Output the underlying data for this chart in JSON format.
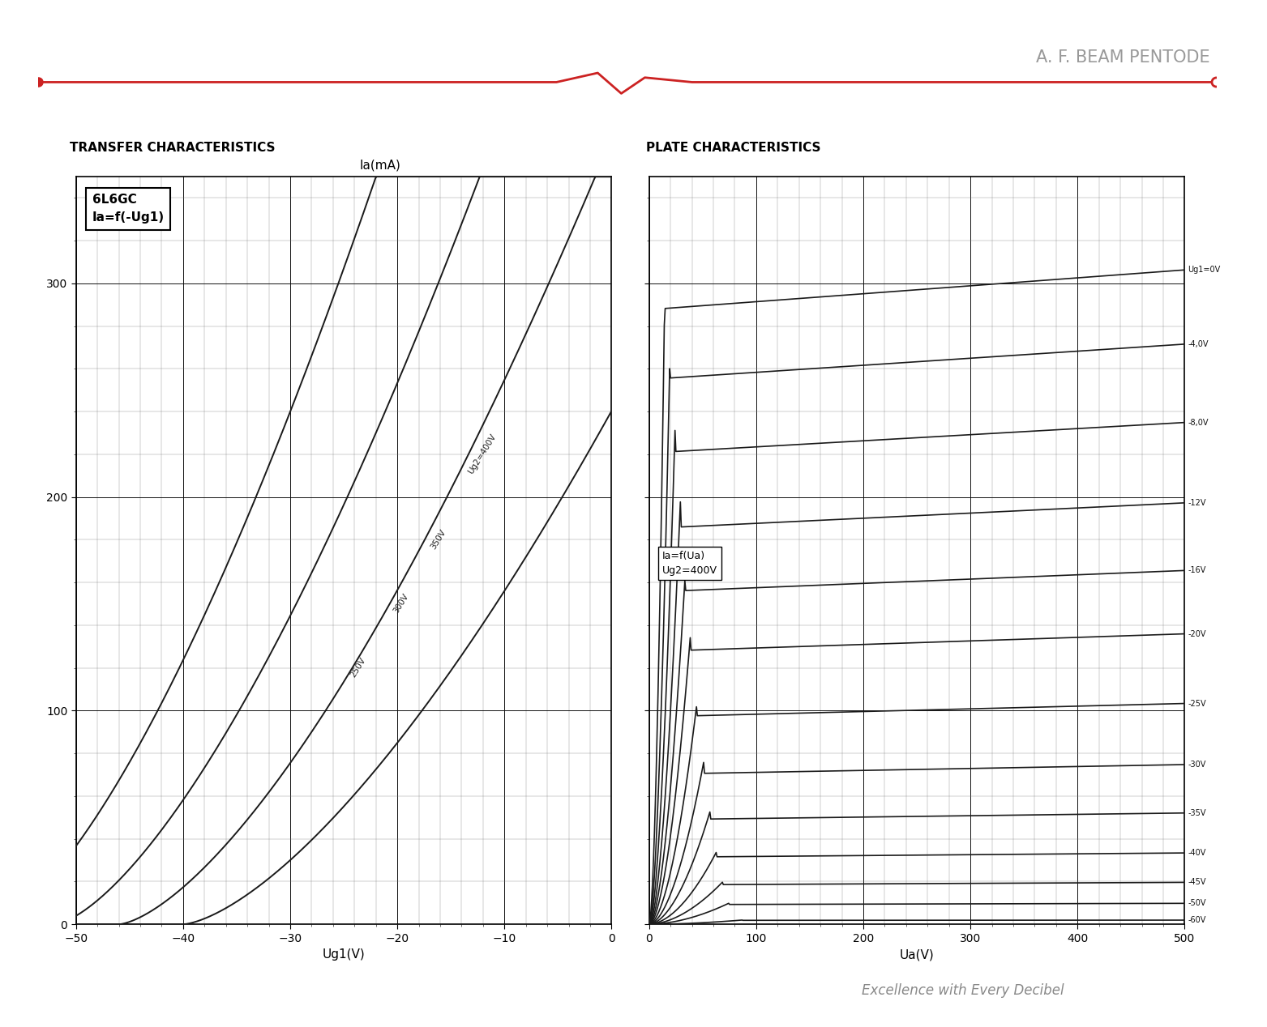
{
  "title": "A. F. BEAM PENTODE",
  "subtitle": "Excellence with Every Decibel",
  "left_title": "TRANSFER CHARACTERISTICS",
  "right_title": "PLATE CHARACTERISTICS",
  "y_label": "Ia(mA)",
  "left_xlabel": "Ug1(V)",
  "right_xlabel": "Ua(V)",
  "left_box_title": "6L6GC",
  "left_box_sub": "Ia=f(-Ug1)",
  "right_box_line1": "Ia=f(Ua)",
  "right_box_line2": "Ug2=400V",
  "transfer_ug2_values": [
    400,
    350,
    300,
    250
  ],
  "transfer_ug2_labels": [
    "Ug2=400V",
    "350V",
    "300V",
    "250V"
  ],
  "plate_ug1_values": [
    0,
    -4,
    -8,
    -12,
    -16,
    -20,
    -25,
    -30,
    -35,
    -40,
    -45,
    -50,
    -60
  ],
  "plate_ug1_labels": [
    "Ug1=0V",
    "-4,0V",
    "-8,0V",
    "-12V",
    "-16V",
    "-20V",
    "-25V",
    "-30V",
    "-35V",
    "-40V",
    "-45V",
    "-50V",
    "-60V"
  ],
  "plate_isat": [
    310,
    275,
    238,
    200,
    168,
    138,
    105,
    76,
    53,
    34,
    20,
    10,
    2
  ],
  "transfer_cutoffs": [
    -58,
    -52,
    -46,
    -40
  ],
  "transfer_scales": [
    1.62,
    1.4,
    1.18,
    0.95
  ],
  "bg_color": "#ffffff",
  "curve_color": "#1a1a1a",
  "header_line_color": "#cc2222",
  "header_text_color": "#999999",
  "left_title_color": "#000000",
  "right_title_color": "#000000",
  "footer_color": "#888888"
}
